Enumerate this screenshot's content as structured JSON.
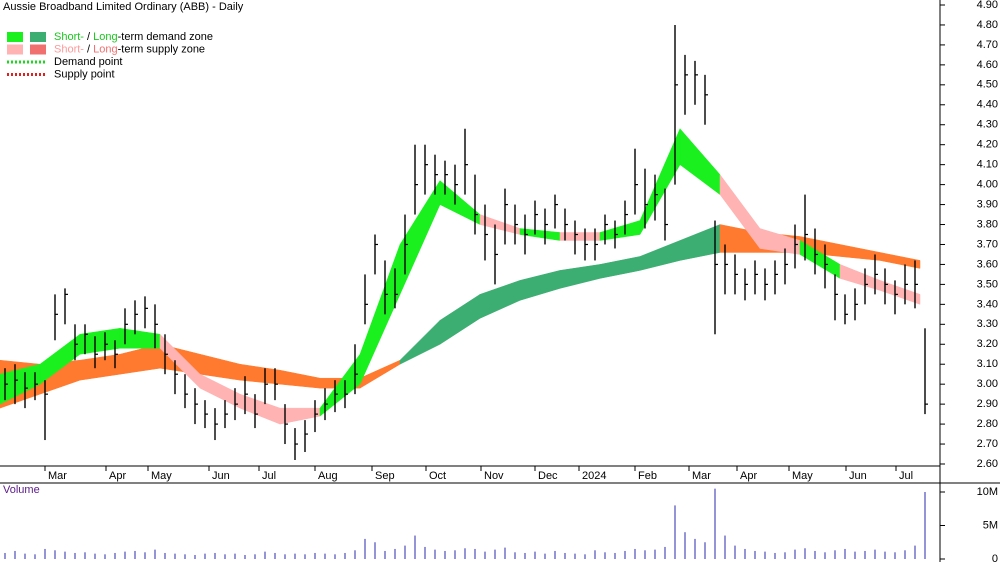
{
  "chart_data": {
    "type": "ohlc",
    "title": "Aussie Broadband Limited Ordinary (ABB) - Daily",
    "bar_color": "#000000",
    "xlim": [
      0,
      94
    ],
    "xticks": [
      {
        "value": 4.5,
        "label": "Mar"
      },
      {
        "value": 10.6,
        "label": "Apr"
      },
      {
        "value": 14.8,
        "label": "May"
      },
      {
        "value": 20.9,
        "label": "Jun"
      },
      {
        "value": 25.9,
        "label": "Jul"
      },
      {
        "value": 31.5,
        "label": "Aug"
      },
      {
        "value": 37.2,
        "label": "Sep"
      },
      {
        "value": 42.6,
        "label": "Oct"
      },
      {
        "value": 48.1,
        "label": "Nov"
      },
      {
        "value": 53.5,
        "label": "Dec"
      },
      {
        "value": 57.9,
        "label": "2024"
      },
      {
        "value": 63.5,
        "label": "Feb"
      },
      {
        "value": 68.9,
        "label": "Mar"
      },
      {
        "value": 73.7,
        "label": "Apr"
      },
      {
        "value": 78.9,
        "label": "May"
      },
      {
        "value": 84.6,
        "label": "Jun"
      },
      {
        "value": 89.6,
        "label": "Jul"
      }
    ],
    "ylim": [
      2.6,
      4.9
    ],
    "yticks": [
      {
        "value": 2.6,
        "label": "2.60"
      },
      {
        "value": 2.7,
        "label": "2.70"
      },
      {
        "value": 2.8,
        "label": "2.80"
      },
      {
        "value": 2.9,
        "label": "2.90"
      },
      {
        "value": 3.0,
        "label": "3.00"
      },
      {
        "value": 3.1,
        "label": "3.10"
      },
      {
        "value": 3.2,
        "label": "3.20"
      },
      {
        "value": 3.3,
        "label": "3.30"
      },
      {
        "value": 3.4,
        "label": "3.40"
      },
      {
        "value": 3.5,
        "label": "3.50"
      },
      {
        "value": 3.6,
        "label": "3.60"
      },
      {
        "value": 3.7,
        "label": "3.70"
      },
      {
        "value": 3.8,
        "label": "3.80"
      },
      {
        "value": 3.9,
        "label": "3.90"
      },
      {
        "value": 4.0,
        "label": "4.00"
      },
      {
        "value": 4.1,
        "label": "4.10"
      },
      {
        "value": 4.2,
        "label": "4.20"
      },
      {
        "value": 4.3,
        "label": "4.30"
      },
      {
        "value": 4.4,
        "label": "4.40"
      },
      {
        "value": 4.5,
        "label": "4.50"
      },
      {
        "value": 4.6,
        "label": "4.60"
      },
      {
        "value": 4.7,
        "label": "4.70"
      },
      {
        "value": 4.8,
        "label": "4.80"
      },
      {
        "value": 4.9,
        "label": "4.90"
      }
    ],
    "high": [
      3.08,
      3.1,
      3.06,
      3.06,
      3.02,
      3.45,
      3.48,
      3.3,
      3.3,
      3.24,
      3.26,
      3.22,
      3.38,
      3.42,
      3.44,
      3.4,
      3.25,
      3.12,
      3.05,
      2.98,
      2.92,
      2.88,
      2.92,
      2.98,
      3.04,
      2.95,
      3.08,
      3.08,
      2.9,
      2.78,
      2.82,
      2.92,
      2.98,
      3.02,
      3.02,
      3.2,
      3.55,
      3.75,
      3.62,
      3.58,
      3.85,
      4.2,
      4.2,
      4.15,
      4.12,
      4.1,
      4.28,
      4.05,
      3.9,
      3.8,
      3.98,
      3.9,
      3.85,
      3.92,
      3.88,
      3.95,
      3.88,
      3.82,
      3.78,
      3.78,
      3.85,
      3.82,
      3.92,
      4.18,
      4.08,
      4.05,
      3.98,
      4.8,
      4.65,
      4.62,
      4.55,
      3.82,
      3.7,
      3.65,
      3.58,
      3.62,
      3.58,
      3.62,
      3.68,
      3.8,
      3.95,
      3.78,
      3.7,
      3.55,
      3.45,
      3.48,
      3.58,
      3.65,
      3.58,
      3.52,
      3.6,
      3.62,
      3.28
    ],
    "low": [
      2.92,
      2.9,
      2.88,
      2.92,
      2.72,
      3.22,
      3.3,
      3.12,
      3.15,
      3.08,
      3.12,
      3.08,
      3.2,
      3.25,
      3.28,
      3.18,
      3.05,
      2.95,
      2.88,
      2.8,
      2.78,
      2.72,
      2.78,
      2.82,
      2.85,
      2.78,
      2.9,
      2.92,
      2.7,
      2.62,
      2.66,
      2.76,
      2.82,
      2.86,
      2.88,
      2.95,
      3.3,
      3.55,
      3.35,
      3.38,
      3.55,
      3.85,
      3.95,
      3.95,
      3.95,
      3.9,
      3.95,
      3.75,
      3.62,
      3.5,
      3.7,
      3.7,
      3.65,
      3.75,
      3.7,
      3.78,
      3.72,
      3.65,
      3.62,
      3.62,
      3.7,
      3.68,
      3.75,
      3.85,
      3.78,
      3.82,
      3.72,
      4.0,
      4.35,
      4.4,
      4.3,
      3.25,
      3.45,
      3.45,
      3.42,
      3.45,
      3.42,
      3.45,
      3.5,
      3.58,
      3.62,
      3.55,
      3.48,
      3.32,
      3.3,
      3.32,
      3.4,
      3.45,
      3.4,
      3.35,
      3.4,
      3.38,
      2.85
    ],
    "close": [
      3.0,
      3.02,
      2.98,
      3.0,
      2.95,
      3.35,
      3.45,
      3.2,
      3.25,
      3.15,
      3.2,
      3.15,
      3.3,
      3.35,
      3.38,
      3.3,
      3.15,
      3.05,
      2.95,
      2.9,
      2.85,
      2.8,
      2.85,
      2.9,
      2.95,
      2.85,
      3.0,
      3.0,
      2.8,
      2.7,
      2.75,
      2.85,
      2.9,
      2.95,
      2.95,
      3.05,
      3.4,
      3.7,
      3.45,
      3.45,
      3.7,
      4.0,
      4.1,
      4.05,
      4.05,
      4.0,
      4.1,
      3.85,
      3.75,
      3.65,
      3.9,
      3.8,
      3.75,
      3.85,
      3.8,
      3.9,
      3.8,
      3.75,
      3.7,
      3.7,
      3.8,
      3.75,
      3.85,
      4.0,
      3.9,
      3.95,
      3.8,
      4.5,
      4.55,
      4.55,
      4.45,
      3.6,
      3.6,
      3.55,
      3.5,
      3.55,
      3.5,
      3.55,
      3.6,
      3.7,
      3.75,
      3.65,
      3.6,
      3.45,
      3.35,
      3.4,
      3.5,
      3.55,
      3.5,
      3.45,
      3.5,
      3.5,
      2.9
    ],
    "zone_colors": {
      "long_demand": "#3cae72",
      "long_supply": "#ff7a2e",
      "short_demand": "#19f01e",
      "short_supply": "#ffb3b3"
    },
    "zones_x": [
      0,
      4,
      8,
      12,
      16,
      20,
      24,
      28,
      32,
      36,
      40,
      44,
      48,
      52,
      56,
      60,
      64,
      68,
      72,
      76,
      80,
      84,
      88,
      92
    ],
    "long_zone": {
      "upper": [
        3.12,
        3.1,
        3.12,
        3.15,
        3.2,
        3.15,
        3.1,
        3.07,
        3.03,
        3.03,
        3.12,
        3.32,
        3.45,
        3.52,
        3.57,
        3.6,
        3.64,
        3.72,
        3.8,
        3.76,
        3.74,
        3.7,
        3.66,
        3.62
      ],
      "lower": [
        2.88,
        2.95,
        3.02,
        3.05,
        3.08,
        3.05,
        3.02,
        3.0,
        2.98,
        2.98,
        3.1,
        3.2,
        3.33,
        3.42,
        3.48,
        3.53,
        3.57,
        3.62,
        3.66,
        3.66,
        3.66,
        3.64,
        3.62,
        3.58
      ],
      "state": [
        "supply",
        "supply",
        "supply",
        "supply",
        "supply",
        "supply",
        "supply",
        "supply",
        "supply",
        "supply",
        "demand",
        "demand",
        "demand",
        "demand",
        "demand",
        "demand",
        "demand",
        "demand",
        "supply",
        "supply",
        "supply",
        "supply",
        "supply",
        "supply"
      ]
    },
    "short_zone": {
      "upper": [
        3.05,
        3.1,
        3.25,
        3.28,
        3.25,
        3.05,
        2.95,
        2.88,
        2.88,
        3.15,
        3.7,
        4.02,
        3.85,
        3.78,
        3.76,
        3.76,
        3.82,
        4.28,
        4.05,
        3.78,
        3.72,
        3.6,
        3.52,
        3.45
      ],
      "lower": [
        2.9,
        3.0,
        3.15,
        3.18,
        3.18,
        2.98,
        2.88,
        2.8,
        2.84,
        3.0,
        3.45,
        3.9,
        3.8,
        3.75,
        3.72,
        3.72,
        3.75,
        4.1,
        3.95,
        3.68,
        3.65,
        3.53,
        3.47,
        3.4
      ],
      "state": [
        "demand",
        "demand",
        "demand",
        "demand",
        "supply",
        "supply",
        "supply",
        "supply",
        "demand",
        "demand",
        "demand",
        "demand",
        "supply",
        "demand",
        "supply",
        "demand",
        "demand",
        "demand",
        "supply",
        "supply",
        "demand",
        "supply",
        "supply",
        "supply"
      ]
    },
    "legend": [
      {
        "swatches": [
          "#19f01e",
          "#3cae72"
        ],
        "parts": [
          {
            "text": "Short-",
            "color": "#19c81e"
          },
          {
            "text": " / ",
            "color": "#000000"
          },
          {
            "text": "Long",
            "color": "#19c81e"
          },
          {
            "text": "-term demand zone",
            "color": "#000000"
          }
        ]
      },
      {
        "swatches": [
          "#ffb3b3",
          "#f07070"
        ],
        "parts": [
          {
            "text": "Short-",
            "color": "#ff9a9a"
          },
          {
            "text": " / ",
            "color": "#000000"
          },
          {
            "text": "Long",
            "color": "#f07070"
          },
          {
            "text": "-term supply zone",
            "color": "#000000"
          }
        ]
      },
      {
        "dotted": "#19d81e",
        "parts": [
          {
            "text": "Demand point",
            "color": "#000000"
          }
        ]
      },
      {
        "dotted": "#e02020",
        "parts": [
          {
            "text": "Supply point",
            "color": "#000000"
          }
        ]
      }
    ],
    "volume": {
      "label": "Volume",
      "color": "#7070c8",
      "ylim": [
        0,
        11000000
      ],
      "yticks": [
        0,
        {
          "value": 5000000,
          "label": "5M"
        },
        {
          "value": 10000000,
          "label": "10M"
        }
      ],
      "values": [
        900000,
        1200000,
        800000,
        700000,
        1500000,
        1300000,
        1100000,
        900000,
        1000000,
        800000,
        700000,
        900000,
        1100000,
        1200000,
        1000000,
        1400000,
        900000,
        800000,
        700000,
        600000,
        800000,
        900000,
        700000,
        800000,
        600000,
        700000,
        1100000,
        900000,
        700000,
        800000,
        700000,
        900000,
        800000,
        700000,
        900000,
        1300000,
        3000000,
        2500000,
        1200000,
        1500000,
        2000000,
        3500000,
        1800000,
        1400000,
        1200000,
        1300000,
        1600000,
        1500000,
        1100000,
        1400000,
        1700000,
        1000000,
        900000,
        1100000,
        800000,
        1200000,
        900000,
        800000,
        700000,
        1300000,
        1000000,
        900000,
        1200000,
        1500000,
        1300000,
        1400000,
        1800000,
        8000000,
        4000000,
        3000000,
        2500000,
        10500000,
        3500000,
        2000000,
        1500000,
        1200000,
        1100000,
        900000,
        1000000,
        1400000,
        1600000,
        1200000,
        1000000,
        1300000,
        1500000,
        1100000,
        1200000,
        1400000,
        1100000,
        1000000,
        1300000,
        2000000,
        10000000
      ]
    }
  }
}
